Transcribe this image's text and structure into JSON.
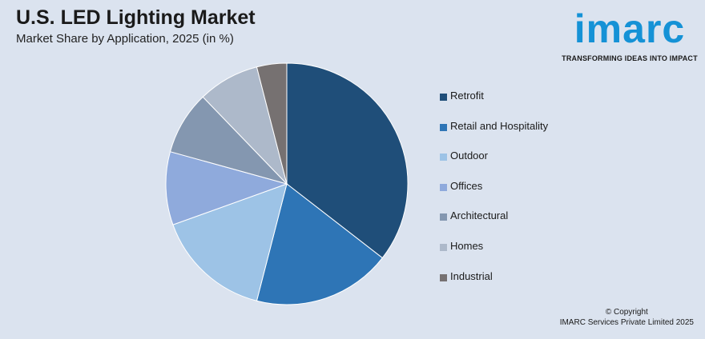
{
  "header": {
    "title": "U.S. LED Lighting Market",
    "subtitle": "Market Share by Application, 2025 (in %)"
  },
  "logo": {
    "word": "imarc",
    "tagline": "TRANSFORMING IDEAS INTO IMPACT",
    "color": "#1592d6"
  },
  "chart_data": {
    "type": "pie",
    "title": "U.S. LED Lighting Market",
    "subtitle": "Market Share by Application, 2025 (in %)",
    "legend_position": "right",
    "categories": [
      "Retrofit",
      "Retail and Hospitality",
      "Outdoor",
      "Offices",
      "Architectural",
      "Homes",
      "Industrial"
    ],
    "values": [
      35.5,
      18.5,
      15.5,
      9.8,
      8.5,
      8.2,
      4.0
    ],
    "colors": [
      "#1f4e79",
      "#2e75b6",
      "#9dc3e6",
      "#8faadc",
      "#8497b0",
      "#adb9ca",
      "#767171"
    ]
  },
  "footer": {
    "copyright_line1": "© Copyright",
    "copyright_line2": "IMARC Services Private Limited 2025"
  }
}
